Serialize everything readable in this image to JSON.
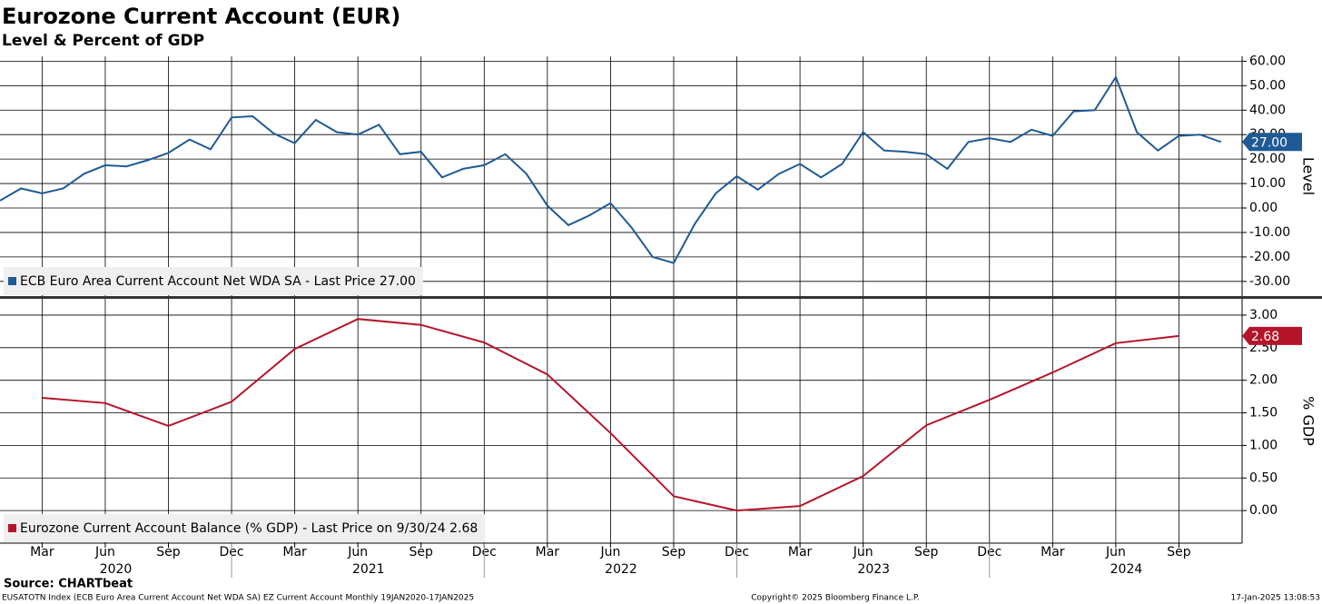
{
  "title": "Eurozone Current Account (EUR)",
  "subtitle": "Level & Percent of GDP",
  "source": "Source: CHARTbeat",
  "footer_left": "EUSATOTN Index (ECB Euro Area Current Account Net WDA SA) EZ Current Account  Monthly 19JAN2020-17JAN2025",
  "footer_center": "Copyright© 2025 Bloomberg Finance L.P.",
  "footer_right": "17-Jan-2025 13:08:53",
  "chart_data": [
    {
      "type": "line",
      "y_label": "Level",
      "xlim": [
        "2020-01",
        "2024-12"
      ],
      "ylim": [
        -36,
        62
      ],
      "grid": true,
      "x": [
        "2020-01",
        "2020-02",
        "2020-03",
        "2020-04",
        "2020-05",
        "2020-06",
        "2020-07",
        "2020-08",
        "2020-09",
        "2020-10",
        "2020-11",
        "2020-12",
        "2021-01",
        "2021-02",
        "2021-03",
        "2021-04",
        "2021-05",
        "2021-06",
        "2021-07",
        "2021-08",
        "2021-09",
        "2021-10",
        "2021-11",
        "2021-12",
        "2022-01",
        "2022-02",
        "2022-03",
        "2022-04",
        "2022-05",
        "2022-06",
        "2022-07",
        "2022-08",
        "2022-09",
        "2022-10",
        "2022-11",
        "2022-12",
        "2023-01",
        "2023-02",
        "2023-03",
        "2023-04",
        "2023-05",
        "2023-06",
        "2023-07",
        "2023-08",
        "2023-09",
        "2023-10",
        "2023-11",
        "2023-12",
        "2024-01",
        "2024-02",
        "2024-03",
        "2024-04",
        "2024-05",
        "2024-06",
        "2024-07",
        "2024-08",
        "2024-09",
        "2024-10",
        "2024-11"
      ],
      "yticks": [
        {
          "value": 60,
          "label": "60.00"
        },
        {
          "value": 50,
          "label": "50.00"
        },
        {
          "value": 40,
          "label": "40.00"
        },
        {
          "value": 30,
          "label": "30.00"
        },
        {
          "value": 20,
          "label": "20.00"
        },
        {
          "value": 10,
          "label": "10.00"
        },
        {
          "value": 0,
          "label": "0.00"
        },
        {
          "value": -10,
          "label": "-10.00"
        },
        {
          "value": -20,
          "label": "-20.00"
        },
        {
          "value": -30,
          "label": "-30.00"
        }
      ],
      "series": [
        {
          "name": "ECB Euro Area Current Account Net WDA SA - Last Price 27.00",
          "color": "#1f5a96",
          "last_value_label": "27.00",
          "values": [
            3,
            8,
            6,
            8,
            14,
            17.5,
            17,
            19.5,
            22.5,
            28,
            24,
            37,
            37.5,
            30.5,
            26.5,
            36,
            31,
            30,
            34,
            22,
            23,
            12.5,
            16,
            17.5,
            22,
            14,
            1,
            -7,
            -3,
            2,
            -8,
            -20,
            -22.5,
            -6.5,
            6,
            13,
            7.5,
            14,
            18,
            12.5,
            18,
            31,
            23.5,
            23,
            22,
            16,
            27,
            28.5,
            27,
            32,
            29.5,
            39.5,
            40,
            53.5,
            31,
            23.5,
            29.5,
            30,
            27
          ]
        }
      ]
    },
    {
      "type": "line",
      "y_label": "% GDP",
      "xlim": [
        "2020-01",
        "2024-12"
      ],
      "ylim": [
        -0.5,
        3.25
      ],
      "grid": true,
      "x": [
        "2020-03",
        "2020-06",
        "2020-09",
        "2020-12",
        "2021-03",
        "2021-06",
        "2021-09",
        "2021-12",
        "2022-03",
        "2022-06",
        "2022-09",
        "2022-12",
        "2023-03",
        "2023-06",
        "2023-09",
        "2023-12",
        "2024-03",
        "2024-06",
        "2024-09"
      ],
      "yticks": [
        {
          "value": 3,
          "label": "3.00"
        },
        {
          "value": 2.5,
          "label": "2.50"
        },
        {
          "value": 2,
          "label": "2.00"
        },
        {
          "value": 1.5,
          "label": "1.50"
        },
        {
          "value": 1,
          "label": "1.00"
        },
        {
          "value": 0.5,
          "label": "0.50"
        },
        {
          "value": 0,
          "label": "0.00"
        }
      ],
      "xticks": [
        {
          "value": "2020-03",
          "label": "Mar"
        },
        {
          "value": "2020-06",
          "label": "Jun"
        },
        {
          "value": "2020-09",
          "label": "Sep"
        },
        {
          "value": "2020-12",
          "label": "Dec"
        },
        {
          "value": "2021-03",
          "label": "Mar"
        },
        {
          "value": "2021-06",
          "label": "Jun"
        },
        {
          "value": "2021-09",
          "label": "Sep"
        },
        {
          "value": "2021-12",
          "label": "Dec"
        },
        {
          "value": "2022-03",
          "label": "Mar"
        },
        {
          "value": "2022-06",
          "label": "Jun"
        },
        {
          "value": "2022-09",
          "label": "Sep"
        },
        {
          "value": "2022-12",
          "label": "Dec"
        },
        {
          "value": "2023-03",
          "label": "Mar"
        },
        {
          "value": "2023-06",
          "label": "Jun"
        },
        {
          "value": "2023-09",
          "label": "Sep"
        },
        {
          "value": "2023-12",
          "label": "Dec"
        },
        {
          "value": "2024-03",
          "label": "Mar"
        },
        {
          "value": "2024-06",
          "label": "Jun"
        },
        {
          "value": "2024-09",
          "label": "Sep"
        }
      ],
      "years": [
        "2020",
        "2021",
        "2022",
        "2023",
        "2024"
      ],
      "series": [
        {
          "name": "Eurozone Current Account Balance (% GDP) - Last Price on 9/30/24 2.68",
          "color": "#b5152b",
          "last_value_label": "2.68",
          "values": [
            1.73,
            1.65,
            1.3,
            1.67,
            2.48,
            2.94,
            2.85,
            2.58,
            2.09,
            1.19,
            0.22,
            0.0,
            0.07,
            0.53,
            1.31,
            1.7,
            2.12,
            2.57,
            2.68
          ]
        }
      ]
    }
  ]
}
